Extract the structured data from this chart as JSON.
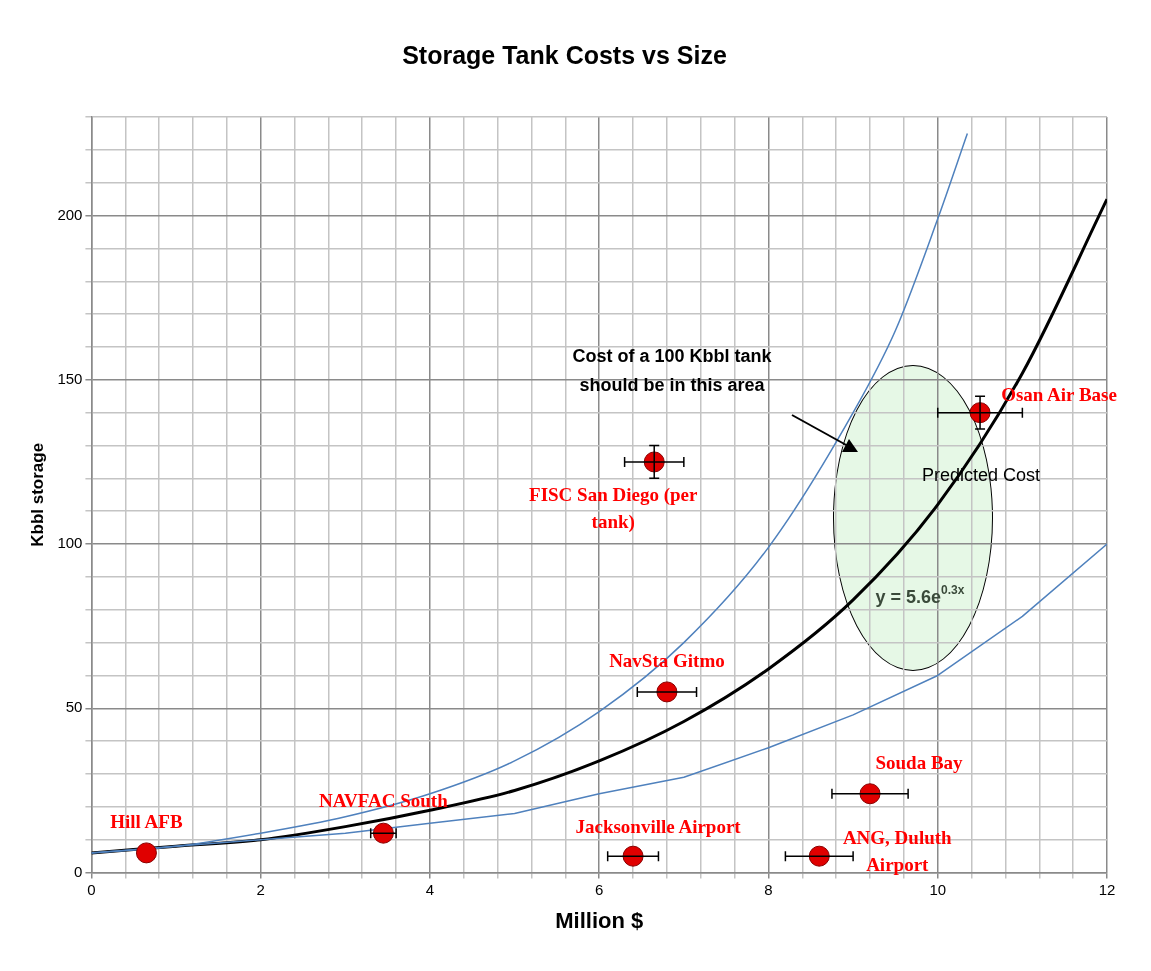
{
  "chart_data": {
    "type": "scatter",
    "title": "Storage Tank Costs vs Size",
    "xlabel": "Million $",
    "ylabel": "Kbbl storage",
    "xlim": [
      0,
      12
    ],
    "ylim": [
      0,
      230
    ],
    "grid": true,
    "legend": false,
    "marker": "circle",
    "xticks": [
      0,
      {
        "value": 0.4,
        "label": null
      },
      {
        "value": 0.8,
        "label": null
      },
      {
        "value": 1.2,
        "label": null
      },
      {
        "value": 1.6,
        "label": null
      },
      2,
      {
        "value": 2.4,
        "label": null
      },
      {
        "value": 2.8,
        "label": null
      },
      {
        "value": 3.2,
        "label": null
      },
      {
        "value": 3.6,
        "label": null
      },
      4,
      {
        "value": 4.4,
        "label": null
      },
      {
        "value": 4.8,
        "label": null
      },
      {
        "value": 5.2,
        "label": null
      },
      {
        "value": 5.6,
        "label": null
      },
      6,
      {
        "value": 6.4,
        "label": null
      },
      {
        "value": 6.8,
        "label": null
      },
      {
        "value": 7.2,
        "label": null
      },
      {
        "value": 7.6,
        "label": null
      },
      8,
      {
        "value": 8.4,
        "label": null
      },
      {
        "value": 8.8,
        "label": null
      },
      {
        "value": 9.2,
        "label": null
      },
      {
        "value": 9.6,
        "label": null
      },
      10,
      {
        "value": 10.4,
        "label": null
      },
      {
        "value": 10.8,
        "label": null
      },
      {
        "value": 11.2,
        "label": null
      },
      {
        "value": 11.6,
        "label": null
      },
      12
    ],
    "yticks": [
      0,
      {
        "value": 10,
        "label": null
      },
      {
        "value": 20,
        "label": null
      },
      {
        "value": 30,
        "label": null
      },
      {
        "value": 40,
        "label": null
      },
      50,
      {
        "value": 60,
        "label": null
      },
      {
        "value": 70,
        "label": null
      },
      {
        "value": 80,
        "label": null
      },
      {
        "value": 90,
        "label": null
      },
      100,
      {
        "value": 110,
        "label": null
      },
      {
        "value": 120,
        "label": null
      },
      {
        "value": 130,
        "label": null
      },
      {
        "value": 140,
        "label": null
      },
      150,
      {
        "value": 160,
        "label": null
      },
      {
        "value": 170,
        "label": null
      },
      {
        "value": 180,
        "label": null
      },
      {
        "value": 190,
        "label": null
      },
      200,
      {
        "value": 210,
        "label": null
      },
      {
        "value": 220,
        "label": null
      },
      {
        "value": 230,
        "label": null
      }
    ],
    "series": [
      {
        "type": "line",
        "marker": "none",
        "color": "#4f81bd",
        "x": [
          0,
          1,
          2,
          3,
          4,
          5,
          6,
          7,
          8,
          9,
          9.5,
          10,
          10.35
        ],
        "values": [
          6,
          8,
          12,
          17,
          24,
          34,
          49,
          70,
          99,
          140,
          165,
          199,
          225
        ]
      },
      {
        "type": "line",
        "marker": "none",
        "color": "#4f81bd",
        "x": [
          0,
          1,
          2,
          3,
          4,
          5,
          6,
          7,
          8,
          9,
          10,
          11,
          12
        ],
        "values": [
          6,
          8,
          10,
          12,
          15,
          18,
          24,
          29,
          38,
          48,
          60,
          78,
          100
        ]
      },
      {
        "type": "line",
        "marker": "none",
        "color": "#000000",
        "x": [
          0,
          1,
          2,
          3,
          4,
          5,
          6,
          7,
          8,
          9,
          10,
          11,
          12
        ],
        "values": [
          6,
          8,
          10,
          14,
          19,
          25,
          34,
          46,
          62,
          83,
          112,
          152,
          205
        ]
      },
      {
        "type": "scatter",
        "name": "Hill AFB",
        "color": "#e00000",
        "x": [
          0.65
        ],
        "values": [
          6
        ]
      },
      {
        "type": "scatter",
        "name": "NAVFAC South",
        "color": "#e00000",
        "x": [
          3.45
        ],
        "values": [
          12
        ],
        "xerrors": [
          0.15
        ]
      },
      {
        "type": "scatter",
        "name": "Jacksonville Airport",
        "color": "#e00000",
        "x": [
          6.4
        ],
        "values": [
          5
        ],
        "xerrors": [
          0.3
        ]
      },
      {
        "type": "scatter",
        "name": "ANG, Duluth Airport",
        "color": "#e00000",
        "x": [
          8.6
        ],
        "values": [
          5
        ],
        "xerrors": [
          0.4
        ]
      },
      {
        "type": "scatter",
        "name": "NavSta Gitmo",
        "color": "#e00000",
        "x": [
          6.8
        ],
        "values": [
          55
        ],
        "xerrors": [
          0.35
        ]
      },
      {
        "type": "scatter",
        "name": "FISC San Diego (per tank)",
        "color": "#e00000",
        "x": [
          6.65
        ],
        "values": [
          125
        ],
        "xerrors": [
          0.35
        ],
        "errors": [
          5
        ]
      },
      {
        "type": "scatter",
        "name": "Souda Bay",
        "color": "#e00000",
        "x": [
          9.2
        ],
        "values": [
          24
        ],
        "xerrors": [
          0.45
        ]
      },
      {
        "type": "scatter",
        "name": "Osan Air Base",
        "color": "#e00000",
        "x": [
          10.5
        ],
        "values": [
          140
        ],
        "xerrors": [
          0.5
        ],
        "errors": [
          5
        ]
      }
    ],
    "annotations": [
      "Cost of a 100 Kbbl tank should be in this area",
      "Predicted Cost",
      "y = 5.6e$^{0.3x}$"
    ]
  }
}
